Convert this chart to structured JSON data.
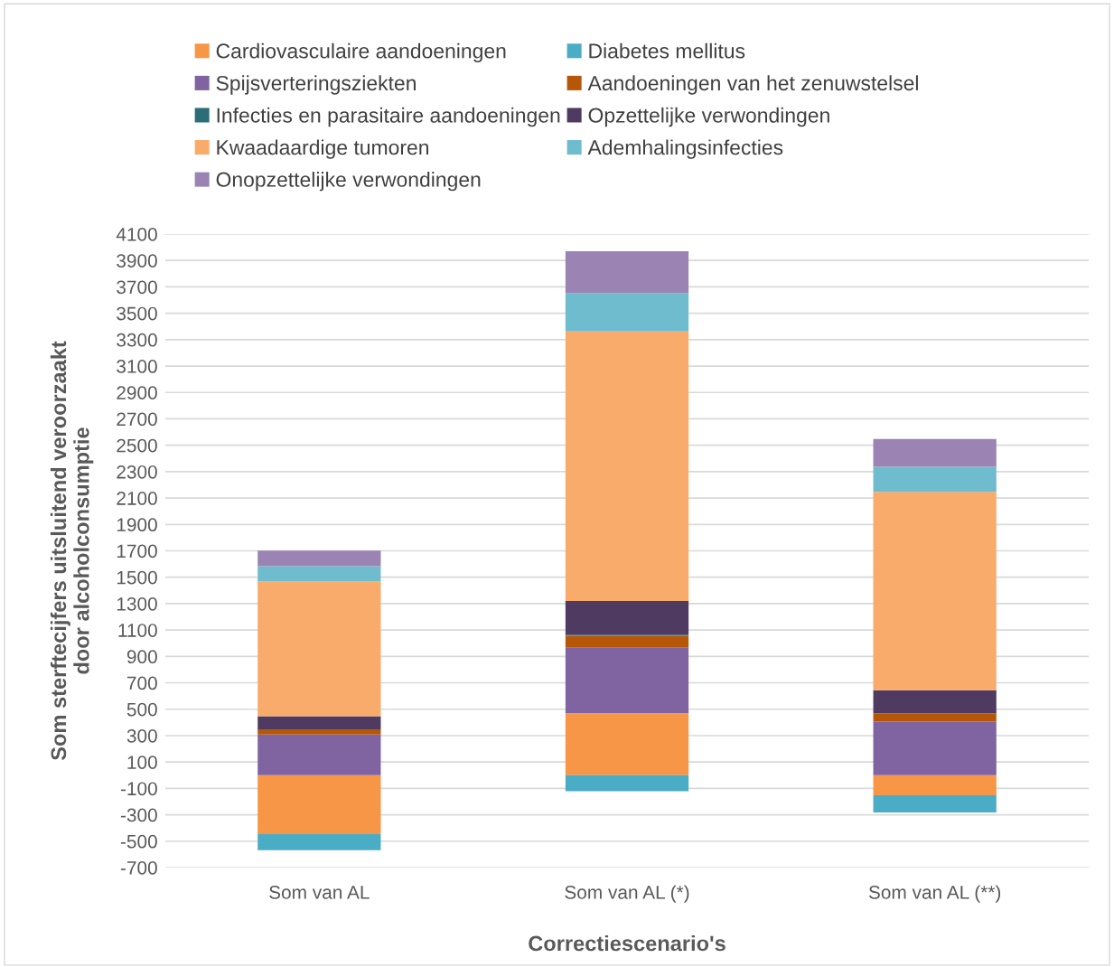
{
  "chart_data": {
    "type": "bar",
    "stacked": true,
    "xlabel": "Correctiescenario's",
    "ylabel": "Som sterftecijfers uitsluitend veroorzaakt\ndoor alcoholconsumptie",
    "categories": [
      "Som van AL",
      "Som van AL (*)",
      "Som van AL (**)"
    ],
    "series": [
      {
        "name": "Cardiovasculaire aandoeningen",
        "color": "#f79646",
        "values": [
          -447,
          470,
          -153
        ]
      },
      {
        "name": "Diabetes mellitus",
        "color": "#4bacc6",
        "values": [
          -121,
          -121,
          -130
        ]
      },
      {
        "name": "Spijsverteringsziekten",
        "color": "#8064a2",
        "values": [
          308,
          496,
          406
        ]
      },
      {
        "name": "Aandoeningen van het zenuwstelsel",
        "color": "#b65708",
        "values": [
          39,
          91,
          62
        ]
      },
      {
        "name": "Infecties en parasitaire aandoeningen",
        "color": "#2c6e78",
        "values": [
          null,
          8,
          null
        ]
      },
      {
        "name": "Opzettelijke verwondingen",
        "color": "#4f3b62",
        "values": [
          100,
          255,
          175
        ]
      },
      {
        "name": "Kwaadaardige tumoren",
        "color": "#f9ab6b",
        "values": [
          1020,
          2043,
          1503
        ]
      },
      {
        "name": "Ademhalingsinfecties",
        "color": "#6fbccf",
        "values": [
          117,
          290,
          191
        ]
      },
      {
        "name": "Onopzettelijke verwondingen",
        "color": "#9b84b4",
        "values": [
          118,
          317,
          211
        ]
      }
    ],
    "ylim": [
      -700,
      4100
    ],
    "yticks": [
      -700,
      -500,
      -300,
      -100,
      100,
      300,
      500,
      700,
      900,
      1100,
      1300,
      1500,
      1700,
      1900,
      2100,
      2300,
      2500,
      2700,
      2900,
      3100,
      3300,
      3500,
      3700,
      3900,
      4100
    ],
    "grid": "y",
    "legend": "top"
  }
}
